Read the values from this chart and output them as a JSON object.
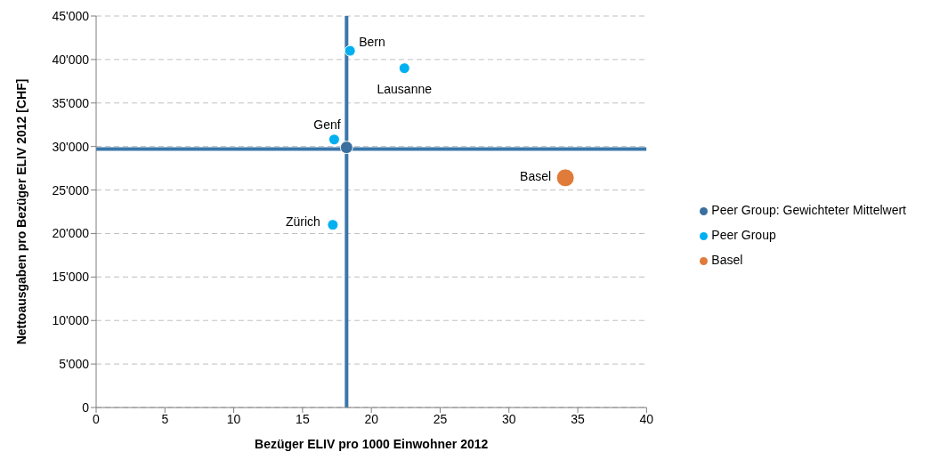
{
  "chart_data": {
    "type": "scatter",
    "xlabel": "Bezüger ELIV pro 1000 Einwohner 2012",
    "ylabel": "Nettoausgaben pro Bezüger ELIV 2012 [CHF]",
    "series": [
      {
        "name": "Peer Group: Gewichteter Mittelwert",
        "color": "#3a6f9e",
        "x": [
          18.2
        ],
        "values": [
          29900
        ]
      },
      {
        "name": "Peer Group",
        "color": "#00b0f0",
        "x": [
          18.45,
          22.4,
          17.3,
          17.2
        ],
        "values": [
          41000,
          39000,
          30800,
          21000
        ]
      },
      {
        "name": "Basel",
        "color": "#e07b39",
        "x": [
          34.1
        ],
        "values": [
          26400
        ]
      }
    ],
    "annotations": [
      {
        "text": "Bern",
        "x": 18.45,
        "y": 41000
      },
      {
        "text": "Lausanne",
        "x": 22.4,
        "y": 39000
      },
      {
        "text": "Genf",
        "x": 17.3,
        "y": 30800
      },
      {
        "text": "Zürich",
        "x": 17.2,
        "y": 21000
      },
      {
        "text": "Basel",
        "x": 34.1,
        "y": 26400
      }
    ],
    "ref_lines": [
      {
        "axis": "x",
        "value": 18.2,
        "color": "#3a77aa"
      },
      {
        "axis": "y",
        "value": 29700,
        "color": "#3a77aa"
      }
    ],
    "xlim": [
      0,
      40
    ],
    "xticks": [
      0,
      5,
      10,
      15,
      20,
      25,
      30,
      35,
      40
    ],
    "ylim": [
      0,
      45000
    ],
    "yticks": [
      0,
      {
        "value": 5000,
        "label": "5'000"
      },
      {
        "value": 10000,
        "label": "10'000"
      },
      {
        "value": 15000,
        "label": "15'000"
      },
      {
        "value": 20000,
        "label": "20'000"
      },
      {
        "value": 25000,
        "label": "25'000"
      },
      {
        "value": 30000,
        "label": "30'000"
      },
      {
        "value": 35000,
        "label": "35'000"
      },
      {
        "value": 40000,
        "label": "40'000"
      },
      {
        "value": 45000,
        "label": "45'000"
      }
    ],
    "grid": "y",
    "legend": "right",
    "marker": "circle"
  }
}
